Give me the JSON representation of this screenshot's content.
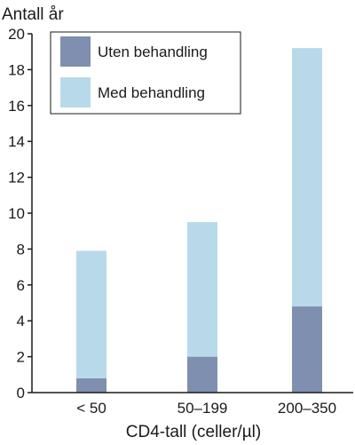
{
  "chart_data": {
    "type": "bar",
    "stacked": true,
    "ylabel": "Antall år",
    "xlabel": "CD4-tall (celler/µl)",
    "categories": [
      "< 50",
      "50–199",
      "200–350"
    ],
    "ylim": [
      0,
      20
    ],
    "yticks": [
      0,
      2,
      4,
      6,
      8,
      10,
      12,
      14,
      16,
      18,
      20
    ],
    "series": [
      {
        "name": "Uten behandling",
        "values": [
          0.8,
          2.0,
          4.8
        ],
        "color": "#7f8faf"
      },
      {
        "name": "Med behandling",
        "values": [
          7.1,
          7.5,
          14.4
        ],
        "color": "#b8d9ea"
      }
    ],
    "totals": [
      7.9,
      9.5,
      19.2
    ],
    "legend_placement": "top-left",
    "grid": false
  }
}
